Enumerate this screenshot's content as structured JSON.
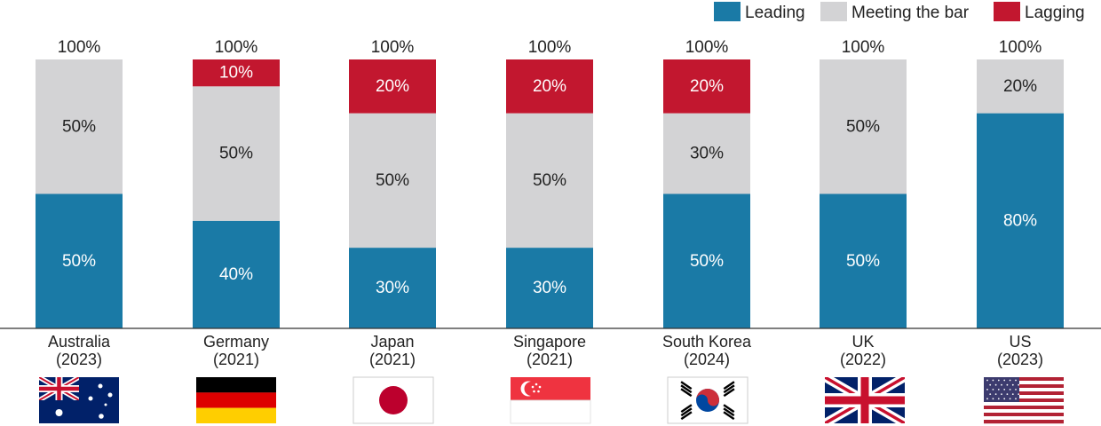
{
  "chart_data": {
    "type": "bar",
    "stacked": true,
    "categories": [
      "Australia",
      "Germany",
      "Japan",
      "Singapore",
      "South Korea",
      "UK",
      "US"
    ],
    "category_years": [
      "(2023)",
      "(2021)",
      "(2021)",
      "(2021)",
      "(2024)",
      "(2022)",
      "(2023)"
    ],
    "totals": [
      "100%",
      "100%",
      "100%",
      "100%",
      "100%",
      "100%",
      "100%"
    ],
    "series": [
      {
        "name": "Leading",
        "color": "#1a7aa6",
        "values": [
          50,
          40,
          30,
          30,
          50,
          50,
          80
        ]
      },
      {
        "name": "Meeting the bar",
        "color": "#d3d3d5",
        "values": [
          50,
          50,
          50,
          50,
          30,
          50,
          20
        ]
      },
      {
        "name": "Lagging",
        "color": "#c2172f",
        "values": [
          0,
          10,
          20,
          20,
          20,
          0,
          0
        ]
      }
    ],
    "label_suffix": "%",
    "ylim": [
      0,
      100
    ],
    "legend_position": "top-right",
    "flags": [
      "australia-flag-icon",
      "germany-flag-icon",
      "japan-flag-icon",
      "singapore-flag-icon",
      "south-korea-flag-icon",
      "uk-flag-icon",
      "us-flag-icon"
    ],
    "grid": false
  }
}
